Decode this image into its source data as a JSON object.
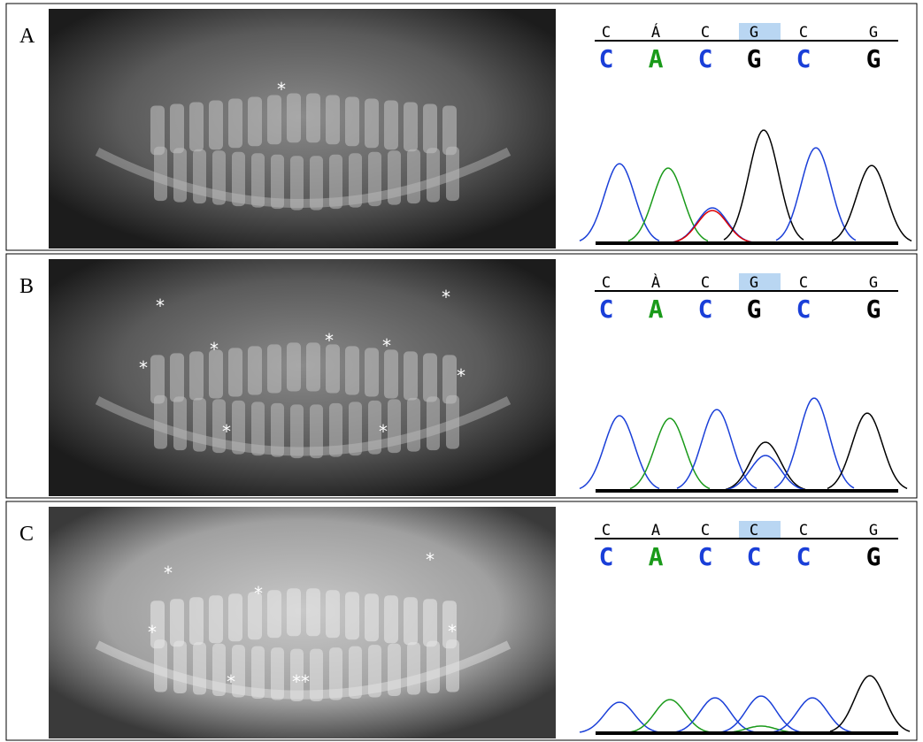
{
  "panels": [
    {
      "label": "A",
      "reference": [
        "C",
        "Á",
        "C",
        "G",
        "C",
        "G"
      ],
      "called": [
        "C",
        "A",
        "C",
        "G",
        "C",
        "G"
      ],
      "asterisks": [
        "*"
      ]
    },
    {
      "label": "B",
      "reference": [
        "C",
        "À",
        "C",
        "G",
        "C",
        "G"
      ],
      "called": [
        "C",
        "A",
        "C",
        "G",
        "C",
        "G"
      ],
      "asterisks": [
        "*",
        "*",
        "*",
        "*",
        "*",
        "*",
        "*",
        "*",
        "*"
      ]
    },
    {
      "label": "C",
      "reference": [
        "C",
        "A",
        "C",
        "C",
        "C",
        "G"
      ],
      "called": [
        "C",
        "A",
        "C",
        "C",
        "C",
        "G"
      ],
      "asterisks": [
        "*",
        "*",
        "*",
        "*",
        "*",
        "*",
        "**"
      ]
    }
  ]
}
